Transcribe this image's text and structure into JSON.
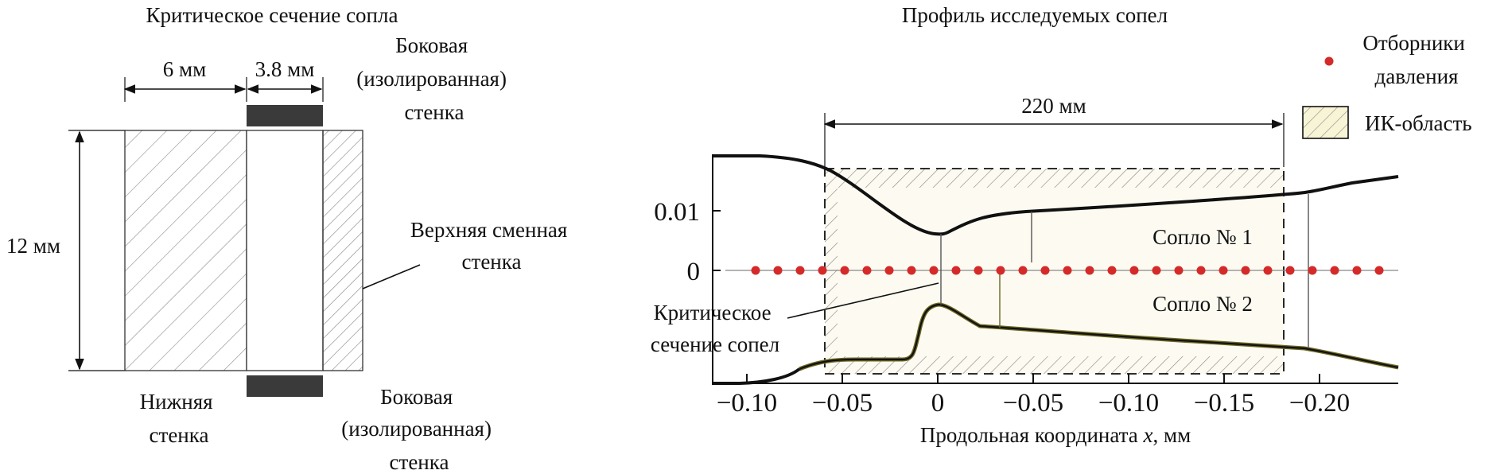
{
  "left_panel": {
    "title": "Критическое сечение сопла",
    "dim_6": "6 мм",
    "dim_38": "3.8 мм",
    "dim_12": "12 мм",
    "side_wall_top": [
      "Боковая",
      "(изолированная)",
      "стенка"
    ],
    "upper_wall": [
      "Верхняя сменная",
      "стенка"
    ],
    "lower_wall": [
      "Нижняя",
      "стенка"
    ],
    "side_wall_bottom": [
      "Боковая",
      "(изолированная)",
      "стенка"
    ]
  },
  "right_panel": {
    "title": "Профиль исследуемых сопел",
    "dim_220": "220 мм",
    "legend": {
      "pressure_taps": [
        "Отборники",
        "давления"
      ],
      "ir_region": "ИК-область"
    },
    "nozzle1": "Сопло № 1",
    "nozzle2": "Сопло № 2",
    "throat_label": [
      "Критическое",
      "сечение сопел"
    ],
    "y_ticks": [
      "0.01",
      "0"
    ],
    "x_ticks": [
      "−0.10",
      "−0.05",
      "0",
      "−0.05",
      "−0.10",
      "−0.15",
      "−0.20"
    ],
    "xlabel_prefix": "Продольная координата ",
    "xlabel_var": "x",
    "xlabel_suffix": ", мм",
    "pressure_tap_count": 29
  },
  "colors": {
    "line": "#111111",
    "tap": "#d42a2a",
    "hatch": "#8c8c8c",
    "ir_fill": "#f8f4d6",
    "wall_block": "#3a3a3a",
    "nozzle2_line": "#6b6520"
  }
}
